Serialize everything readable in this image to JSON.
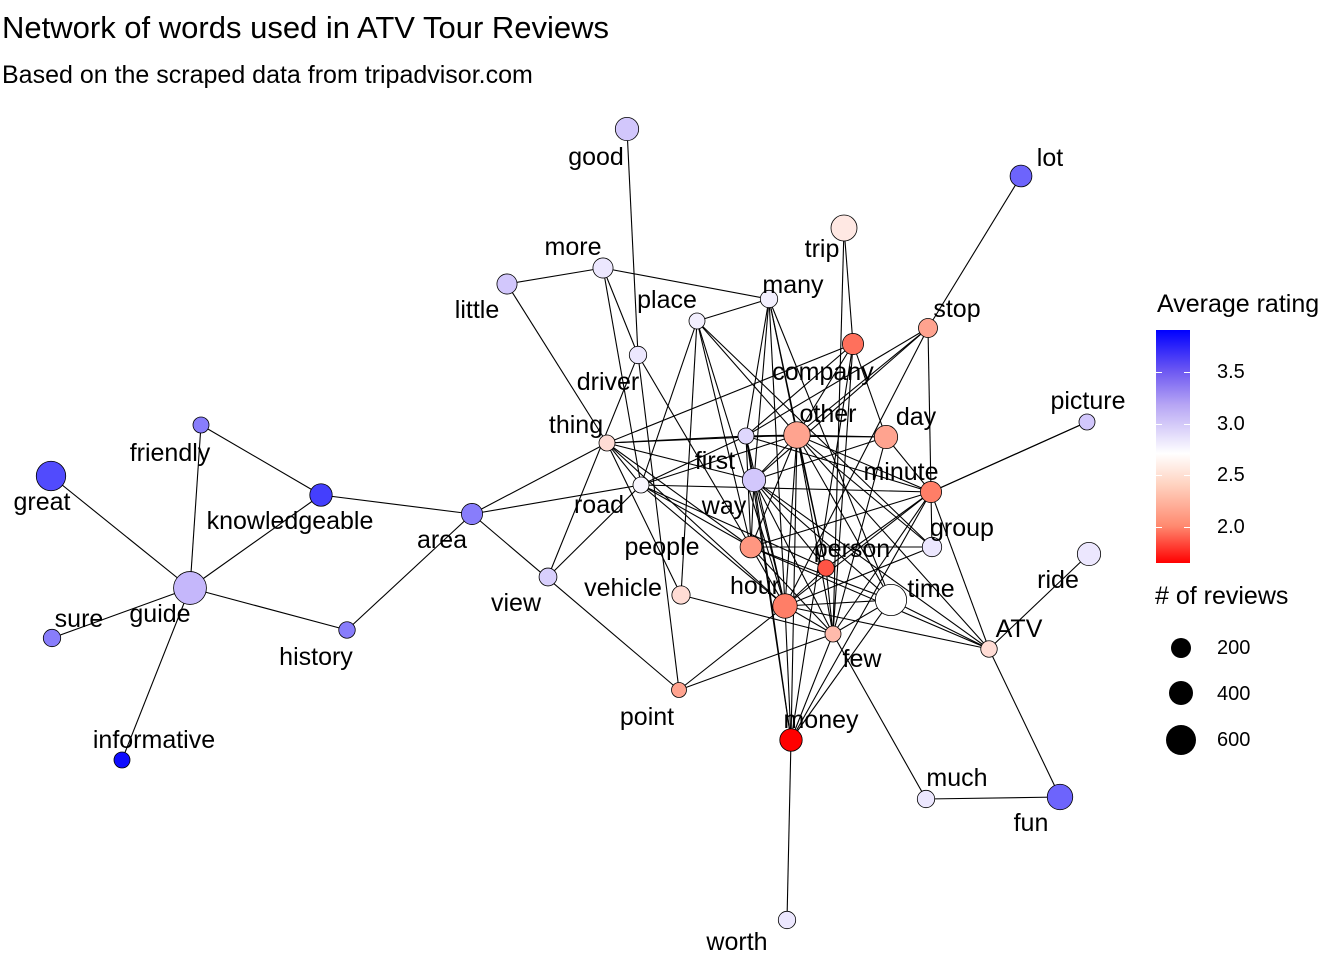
{
  "title": "Network of words used in ATV Tour Reviews",
  "subtitle": "Based on the scraped data from tripadvisor.com",
  "legend": {
    "color_title": "Average rating",
    "color_ticks": [
      "3.5",
      "3.0",
      "2.5",
      "2.0"
    ],
    "color_scale": {
      "high": "#0000ff",
      "mid": "#ffffff",
      "low": "#ff0000"
    },
    "size_title": "# of reviews",
    "size_ticks": [
      "200",
      "400",
      "600"
    ]
  },
  "network": {
    "nodes": [
      {
        "word": "good",
        "rating": 3.05,
        "reviews": 300
      },
      {
        "word": "lot",
        "rating": 3.5,
        "reviews": 250
      },
      {
        "word": "trip",
        "rating": 2.6,
        "reviews": 400
      },
      {
        "word": "more",
        "rating": 2.85,
        "reviews": 200
      },
      {
        "word": "little",
        "rating": 3.05,
        "reviews": 200
      },
      {
        "word": "many",
        "rating": 2.8,
        "reviews": 130
      },
      {
        "word": "place",
        "rating": 2.8,
        "reviews": 100
      },
      {
        "word": "stop",
        "rating": 2.3,
        "reviews": 170
      },
      {
        "word": "company",
        "rating": 2.1,
        "reviews": 230
      },
      {
        "word": "driver",
        "rating": 2.85,
        "reviews": 130
      },
      {
        "word": "picture",
        "rating": 3.05,
        "reviews": 100
      },
      {
        "word": "other",
        "rating": 2.3,
        "reviews": 420
      },
      {
        "word": "day",
        "rating": 2.3,
        "reviews": 300
      },
      {
        "word": "thing",
        "rating": 2.55,
        "reviews": 100
      },
      {
        "word": "first",
        "rating": 2.95,
        "reviews": 100
      },
      {
        "word": "minute",
        "rating": 2.15,
        "reviews": 230
      },
      {
        "word": "friendly",
        "rating": 3.4,
        "reviews": 100
      },
      {
        "word": "great",
        "rating": 3.6,
        "reviews": 550
      },
      {
        "word": "knowledgeable",
        "rating": 3.65,
        "reviews": 270
      },
      {
        "word": "way",
        "rating": 3.05,
        "reviews": 300
      },
      {
        "word": "road",
        "rating": 2.75,
        "reviews": 100
      },
      {
        "word": "area",
        "rating": 3.4,
        "reviews": 230
      },
      {
        "word": "group",
        "rating": 2.85,
        "reviews": 180
      },
      {
        "word": "people",
        "rating": 2.25,
        "reviews": 250
      },
      {
        "word": "person",
        "rating": 2.0,
        "reviews": 110
      },
      {
        "word": "ride",
        "rating": 2.85,
        "reviews": 300
      },
      {
        "word": "view",
        "rating": 3.0,
        "reviews": 140
      },
      {
        "word": "vehicle",
        "rating": 2.55,
        "reviews": 150
      },
      {
        "word": "hour",
        "rating": 2.15,
        "reviews": 340
      },
      {
        "word": "time",
        "rating": 2.7,
        "reviews": 640
      },
      {
        "word": "guide",
        "rating": 3.15,
        "reviews": 720
      },
      {
        "word": "sure",
        "rating": 3.4,
        "reviews": 130
      },
      {
        "word": "history",
        "rating": 3.4,
        "reviews": 110
      },
      {
        "word": "few",
        "rating": 2.4,
        "reviews": 100
      },
      {
        "word": "ATV",
        "rating": 2.55,
        "reviews": 110
      },
      {
        "word": "point",
        "rating": 2.3,
        "reviews": 80
      },
      {
        "word": "money",
        "rating": 1.7,
        "reviews": 270
      },
      {
        "word": "informative",
        "rating": 3.85,
        "reviews": 100
      },
      {
        "word": "much",
        "rating": 2.85,
        "reviews": 130
      },
      {
        "word": "fun",
        "rating": 3.5,
        "reviews": 380
      },
      {
        "word": "worth",
        "rating": 2.85,
        "reviews": 130
      }
    ],
    "edges": [
      [
        "good",
        "driver"
      ],
      [
        "lot",
        "stop"
      ],
      [
        "trip",
        "company"
      ],
      [
        "trip",
        "few"
      ],
      [
        "more",
        "little"
      ],
      [
        "more",
        "many"
      ],
      [
        "more",
        "driver"
      ],
      [
        "more",
        "road"
      ],
      [
        "little",
        "thing"
      ],
      [
        "many",
        "place"
      ],
      [
        "many",
        "other"
      ],
      [
        "many",
        "first"
      ],
      [
        "many",
        "way"
      ],
      [
        "many",
        "person"
      ],
      [
        "many",
        "time"
      ],
      [
        "many",
        "hour"
      ],
      [
        "place",
        "people"
      ],
      [
        "place",
        "vehicle"
      ],
      [
        "place",
        "other"
      ],
      [
        "place",
        "hour"
      ],
      [
        "place",
        "group"
      ],
      [
        "place",
        "road"
      ],
      [
        "stop",
        "minute"
      ],
      [
        "stop",
        "other"
      ],
      [
        "stop",
        "first"
      ],
      [
        "stop",
        "hour"
      ],
      [
        "stop",
        "way"
      ],
      [
        "company",
        "other"
      ],
      [
        "company",
        "first"
      ],
      [
        "company",
        "money"
      ],
      [
        "company",
        "few"
      ],
      [
        "company",
        "day"
      ],
      [
        "company",
        "thing"
      ],
      [
        "driver",
        "view"
      ],
      [
        "driver",
        "point"
      ],
      [
        "driver",
        "people"
      ],
      [
        "picture",
        "minute"
      ],
      [
        "other",
        "day"
      ],
      [
        "other",
        "thing"
      ],
      [
        "other",
        "first"
      ],
      [
        "other",
        "road"
      ],
      [
        "other",
        "way"
      ],
      [
        "other",
        "people"
      ],
      [
        "other",
        "person"
      ],
      [
        "other",
        "hour"
      ],
      [
        "other",
        "time"
      ],
      [
        "other",
        "few"
      ],
      [
        "other",
        "minute"
      ],
      [
        "other",
        "ATV"
      ],
      [
        "other",
        "money"
      ],
      [
        "other",
        "group"
      ],
      [
        "day",
        "first"
      ],
      [
        "day",
        "minute"
      ],
      [
        "day",
        "way"
      ],
      [
        "day",
        "few"
      ],
      [
        "thing",
        "first"
      ],
      [
        "thing",
        "area"
      ],
      [
        "thing",
        "vehicle"
      ],
      [
        "thing",
        "people"
      ],
      [
        "thing",
        "hour"
      ],
      [
        "thing",
        "road"
      ],
      [
        "thing",
        "way"
      ],
      [
        "first",
        "minute"
      ],
      [
        "first",
        "road"
      ],
      [
        "first",
        "way"
      ],
      [
        "first",
        "people"
      ],
      [
        "first",
        "hour"
      ],
      [
        "first",
        "money"
      ],
      [
        "minute",
        "road"
      ],
      [
        "minute",
        "people"
      ],
      [
        "minute",
        "person"
      ],
      [
        "minute",
        "hour"
      ],
      [
        "minute",
        "few"
      ],
      [
        "minute",
        "ATV"
      ],
      [
        "minute",
        "picture"
      ],
      [
        "minute",
        "money"
      ],
      [
        "minute",
        "group"
      ],
      [
        "friendly",
        "guide"
      ],
      [
        "friendly",
        "knowledgeable"
      ],
      [
        "great",
        "guide"
      ],
      [
        "knowledgeable",
        "guide"
      ],
      [
        "knowledgeable",
        "area"
      ],
      [
        "way",
        "people"
      ],
      [
        "way",
        "person"
      ],
      [
        "way",
        "hour"
      ],
      [
        "way",
        "time"
      ],
      [
        "way",
        "few"
      ],
      [
        "way",
        "money"
      ],
      [
        "way",
        "ATV"
      ],
      [
        "road",
        "view"
      ],
      [
        "road",
        "people"
      ],
      [
        "road",
        "person"
      ],
      [
        "road",
        "hour"
      ],
      [
        "road",
        "area"
      ],
      [
        "area",
        "history"
      ],
      [
        "area",
        "point"
      ],
      [
        "group",
        "people"
      ],
      [
        "group",
        "hour"
      ],
      [
        "people",
        "few"
      ],
      [
        "people",
        "hour"
      ],
      [
        "people",
        "time"
      ],
      [
        "people",
        "ATV"
      ],
      [
        "person",
        "hour"
      ],
      [
        "person",
        "few"
      ],
      [
        "ride",
        "ATV"
      ],
      [
        "vehicle",
        "few"
      ],
      [
        "hour",
        "few"
      ],
      [
        "hour",
        "money"
      ],
      [
        "hour",
        "time"
      ],
      [
        "hour",
        "ATV"
      ],
      [
        "time",
        "few"
      ],
      [
        "time",
        "money"
      ],
      [
        "time",
        "ATV"
      ],
      [
        "guide",
        "sure"
      ],
      [
        "guide",
        "history"
      ],
      [
        "guide",
        "informative"
      ],
      [
        "few",
        "point"
      ],
      [
        "few",
        "much"
      ],
      [
        "few",
        "money"
      ],
      [
        "ATV",
        "fun"
      ],
      [
        "much",
        "fun"
      ],
      [
        "point",
        "hour"
      ],
      [
        "money",
        "worth"
      ]
    ]
  }
}
